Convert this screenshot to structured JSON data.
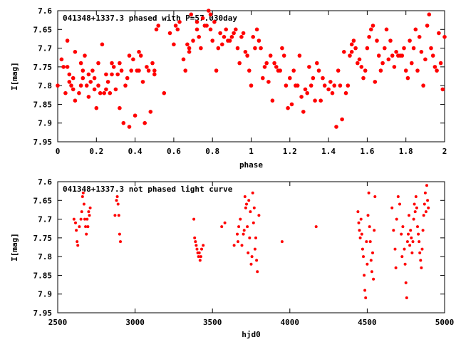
{
  "chart_data": [
    {
      "type": "scatter",
      "title": "041348+1337.3 phased with P=57.030day",
      "xlabel": "phase",
      "ylabel": "I[mag]",
      "xlim": [
        0,
        2
      ],
      "ylim": [
        7.95,
        7.6
      ],
      "y_inverted": true,
      "xticks": [
        0,
        0.2,
        0.4,
        0.6,
        0.8,
        1,
        1.2,
        1.4,
        1.6,
        1.8,
        2
      ],
      "xtick_labels": [
        "0",
        "0.2",
        "0.4",
        "0.6",
        "0.8",
        "1",
        "1.2",
        "1.4",
        "1.6",
        "1.8",
        "2"
      ],
      "yticks": [
        7.6,
        7.65,
        7.7,
        7.75,
        7.8,
        7.85,
        7.9,
        7.95
      ],
      "ytick_labels": [
        "7.6",
        "7.65",
        "7.7",
        "7.75",
        "7.8",
        "7.85",
        "7.9",
        "7.95"
      ],
      "grid": false,
      "marker_color": "#ff0000",
      "points": [
        [
          0.0,
          7.8
        ],
        [
          0.02,
          7.73
        ],
        [
          0.03,
          7.75
        ],
        [
          0.04,
          7.82
        ],
        [
          0.05,
          7.68
        ],
        [
          0.05,
          7.75
        ],
        [
          0.06,
          7.77
        ],
        [
          0.06,
          7.79
        ],
        [
          0.07,
          7.8
        ],
        [
          0.08,
          7.78
        ],
        [
          0.08,
          7.81
        ],
        [
          0.09,
          7.71
        ],
        [
          0.09,
          7.84
        ],
        [
          0.11,
          7.82
        ],
        [
          0.12,
          7.74
        ],
        [
          0.12,
          7.8
        ],
        [
          0.13,
          7.76
        ],
        [
          0.13,
          7.78
        ],
        [
          0.14,
          7.72
        ],
        [
          0.15,
          7.8
        ],
        [
          0.16,
          7.83
        ],
        [
          0.16,
          7.77
        ],
        [
          0.17,
          7.79
        ],
        [
          0.18,
          7.76
        ],
        [
          0.19,
          7.78
        ],
        [
          0.19,
          7.81
        ],
        [
          0.2,
          7.86
        ],
        [
          0.21,
          7.74
        ],
        [
          0.21,
          7.8
        ],
        [
          0.22,
          7.82
        ],
        [
          0.23,
          7.69
        ],
        [
          0.24,
          7.82
        ],
        [
          0.25,
          7.81
        ],
        [
          0.25,
          7.77
        ],
        [
          0.26,
          7.79
        ],
        [
          0.27,
          7.82
        ],
        [
          0.28,
          7.74
        ],
        [
          0.28,
          7.77
        ],
        [
          0.29,
          7.75
        ],
        [
          0.3,
          7.81
        ],
        [
          0.31,
          7.77
        ],
        [
          0.32,
          7.86
        ],
        [
          0.32,
          7.74
        ],
        [
          0.33,
          7.76
        ],
        [
          0.34,
          7.9
        ],
        [
          0.35,
          7.8
        ],
        [
          0.36,
          7.78
        ],
        [
          0.37,
          7.91
        ],
        [
          0.37,
          7.72
        ],
        [
          0.38,
          7.76
        ],
        [
          0.39,
          7.73
        ],
        [
          0.4,
          7.88
        ],
        [
          0.41,
          7.76
        ],
        [
          0.42,
          7.76
        ],
        [
          0.42,
          7.71
        ],
        [
          0.43,
          7.72
        ],
        [
          0.44,
          7.79
        ],
        [
          0.45,
          7.9
        ],
        [
          0.46,
          7.75
        ],
        [
          0.47,
          7.76
        ],
        [
          0.48,
          7.87
        ],
        [
          0.49,
          7.74
        ],
        [
          0.5,
          7.77
        ],
        [
          0.5,
          7.76
        ],
        [
          0.51,
          7.65
        ],
        [
          0.52,
          7.64
        ],
        [
          0.55,
          7.82
        ],
        [
          0.58,
          7.66
        ],
        [
          0.6,
          7.69
        ],
        [
          0.61,
          7.64
        ],
        [
          0.62,
          7.65
        ],
        [
          0.63,
          7.63
        ],
        [
          0.65,
          7.73
        ],
        [
          0.66,
          7.76
        ],
        [
          0.67,
          7.69
        ],
        [
          0.68,
          7.7
        ],
        [
          0.68,
          7.71
        ],
        [
          0.69,
          7.61
        ],
        [
          0.7,
          7.68
        ],
        [
          0.72,
          7.65
        ],
        [
          0.72,
          7.63
        ],
        [
          0.73,
          7.67
        ],
        [
          0.74,
          7.7
        ],
        [
          0.75,
          7.62
        ],
        [
          0.76,
          7.64
        ],
        [
          0.77,
          7.64
        ],
        [
          0.78,
          7.6
        ],
        [
          0.79,
          7.61
        ],
        [
          0.79,
          7.65
        ],
        [
          0.8,
          7.68
        ],
        [
          0.81,
          7.63
        ],
        [
          0.82,
          7.76
        ],
        [
          0.83,
          7.7
        ],
        [
          0.84,
          7.66
        ],
        [
          0.85,
          7.69
        ],
        [
          0.86,
          7.67
        ],
        [
          0.87,
          7.65
        ],
        [
          0.88,
          7.68
        ],
        [
          0.89,
          7.68
        ],
        [
          0.9,
          7.67
        ],
        [
          0.91,
          7.66
        ],
        [
          0.92,
          7.65
        ],
        [
          0.93,
          7.7
        ],
        [
          0.94,
          7.74
        ],
        [
          0.95,
          7.67
        ],
        [
          0.96,
          7.66
        ],
        [
          0.97,
          7.71
        ],
        [
          0.98,
          7.72
        ],
        [
          0.99,
          7.76
        ],
        [
          1.0,
          7.8
        ],
        [
          1.01,
          7.67
        ],
        [
          1.02,
          7.7
        ],
        [
          1.03,
          7.65
        ],
        [
          1.04,
          7.68
        ],
        [
          1.05,
          7.7
        ],
        [
          1.06,
          7.78
        ],
        [
          1.07,
          7.75
        ],
        [
          1.08,
          7.74
        ],
        [
          1.09,
          7.79
        ],
        [
          1.1,
          7.72
        ],
        [
          1.11,
          7.84
        ],
        [
          1.12,
          7.74
        ],
        [
          1.13,
          7.75
        ],
        [
          1.14,
          7.76
        ],
        [
          1.15,
          7.76
        ],
        [
          1.16,
          7.7
        ],
        [
          1.17,
          7.72
        ],
        [
          1.18,
          7.8
        ],
        [
          1.19,
          7.86
        ],
        [
          1.2,
          7.78
        ],
        [
          1.21,
          7.85
        ],
        [
          1.22,
          7.76
        ],
        [
          1.23,
          7.8
        ],
        [
          1.24,
          7.8
        ],
        [
          1.25,
          7.72
        ],
        [
          1.26,
          7.83
        ],
        [
          1.27,
          7.87
        ],
        [
          1.28,
          7.81
        ],
        [
          1.29,
          7.82
        ],
        [
          1.3,
          7.75
        ],
        [
          1.31,
          7.8
        ],
        [
          1.32,
          7.78
        ],
        [
          1.33,
          7.84
        ],
        [
          1.34,
          7.74
        ],
        [
          1.35,
          7.76
        ],
        [
          1.36,
          7.84
        ],
        [
          1.37,
          7.78
        ],
        [
          1.38,
          7.8
        ],
        [
          1.4,
          7.81
        ],
        [
          1.41,
          7.79
        ],
        [
          1.42,
          7.82
        ],
        [
          1.43,
          7.8
        ],
        [
          1.44,
          7.91
        ],
        [
          1.45,
          7.76
        ],
        [
          1.46,
          7.8
        ],
        [
          1.47,
          7.89
        ],
        [
          1.48,
          7.71
        ],
        [
          1.49,
          7.82
        ],
        [
          1.5,
          7.8
        ],
        [
          1.51,
          7.72
        ],
        [
          1.52,
          7.69
        ],
        [
          1.52,
          7.71
        ],
        [
          1.53,
          7.68
        ],
        [
          1.54,
          7.7
        ],
        [
          1.55,
          7.74
        ],
        [
          1.56,
          7.73
        ],
        [
          1.57,
          7.75
        ],
        [
          1.58,
          7.78
        ],
        [
          1.59,
          7.76
        ],
        [
          1.6,
          7.7
        ],
        [
          1.61,
          7.67
        ],
        [
          1.62,
          7.65
        ],
        [
          1.63,
          7.64
        ],
        [
          1.64,
          7.79
        ],
        [
          1.65,
          7.68
        ],
        [
          1.66,
          7.72
        ],
        [
          1.67,
          7.76
        ],
        [
          1.68,
          7.74
        ],
        [
          1.69,
          7.7
        ],
        [
          1.7,
          7.65
        ],
        [
          1.71,
          7.73
        ],
        [
          1.72,
          7.68
        ],
        [
          1.73,
          7.72
        ],
        [
          1.74,
          7.75
        ],
        [
          1.75,
          7.71
        ],
        [
          1.76,
          7.72
        ],
        [
          1.77,
          7.72
        ],
        [
          1.78,
          7.72
        ],
        [
          1.79,
          7.7
        ],
        [
          1.8,
          7.76
        ],
        [
          1.81,
          7.78
        ],
        [
          1.82,
          7.68
        ],
        [
          1.83,
          7.74
        ],
        [
          1.84,
          7.7
        ],
        [
          1.85,
          7.65
        ],
        [
          1.86,
          7.76
        ],
        [
          1.87,
          7.67
        ],
        [
          1.88,
          7.71
        ],
        [
          1.89,
          7.8
        ],
        [
          1.9,
          7.73
        ],
        [
          1.91,
          7.64
        ],
        [
          1.92,
          7.61
        ],
        [
          1.93,
          7.7
        ],
        [
          1.94,
          7.72
        ],
        [
          1.95,
          7.75
        ],
        [
          1.96,
          7.76
        ],
        [
          1.97,
          7.66
        ],
        [
          1.98,
          7.74
        ],
        [
          1.99,
          7.81
        ],
        [
          2.0,
          7.67
        ]
      ]
    },
    {
      "type": "scatter",
      "title": "041348+1337.3 not phased light curve",
      "xlabel": "hjd0",
      "ylabel": "I[mag]",
      "xlim": [
        2500,
        5000
      ],
      "ylim": [
        7.95,
        7.6
      ],
      "y_inverted": true,
      "xticks": [
        2500,
        3000,
        3500,
        4000,
        4500,
        5000
      ],
      "xtick_labels": [
        "2500",
        "3000",
        "3500",
        "4000",
        "4500",
        "5000"
      ],
      "yticks": [
        7.6,
        7.65,
        7.7,
        7.75,
        7.8,
        7.85,
        7.9,
        7.95
      ],
      "ytick_labels": [
        "7.6",
        "7.65",
        "7.7",
        "7.75",
        "7.8",
        "7.85",
        "7.9",
        "7.95"
      ],
      "grid": false,
      "marker_color": "#ff0000",
      "points": [
        [
          2605,
          7.7
        ],
        [
          2615,
          7.71
        ],
        [
          2620,
          7.73
        ],
        [
          2625,
          7.76
        ],
        [
          2630,
          7.77
        ],
        [
          2640,
          7.72
        ],
        [
          2650,
          7.7
        ],
        [
          2655,
          7.68
        ],
        [
          2660,
          7.64
        ],
        [
          2665,
          7.63
        ],
        [
          2670,
          7.66
        ],
        [
          2675,
          7.7
        ],
        [
          2680,
          7.72
        ],
        [
          2685,
          7.74
        ],
        [
          2690,
          7.7
        ],
        [
          2695,
          7.72
        ],
        [
          2700,
          7.68
        ],
        [
          2705,
          7.69
        ],
        [
          2710,
          7.67
        ],
        [
          2870,
          7.69
        ],
        [
          2880,
          7.65
        ],
        [
          2885,
          7.64
        ],
        [
          2890,
          7.66
        ],
        [
          2895,
          7.69
        ],
        [
          2900,
          7.74
        ],
        [
          2905,
          7.76
        ],
        [
          3380,
          7.7
        ],
        [
          3385,
          7.75
        ],
        [
          3390,
          7.76
        ],
        [
          3395,
          7.77
        ],
        [
          3400,
          7.78
        ],
        [
          3405,
          7.79
        ],
        [
          3410,
          7.8
        ],
        [
          3415,
          7.79
        ],
        [
          3420,
          7.81
        ],
        [
          3425,
          7.8
        ],
        [
          3430,
          7.78
        ],
        [
          3440,
          7.77
        ],
        [
          3560,
          7.72
        ],
        [
          3580,
          7.71
        ],
        [
          3640,
          7.77
        ],
        [
          3660,
          7.74
        ],
        [
          3665,
          7.76
        ],
        [
          3670,
          7.72
        ],
        [
          3680,
          7.7
        ],
        [
          3690,
          7.77
        ],
        [
          3700,
          7.74
        ],
        [
          3705,
          7.73
        ],
        [
          3710,
          7.64
        ],
        [
          3715,
          7.67
        ],
        [
          3720,
          7.66
        ],
        [
          3725,
          7.72
        ],
        [
          3730,
          7.79
        ],
        [
          3735,
          7.65
        ],
        [
          3740,
          7.75
        ],
        [
          3745,
          7.68
        ],
        [
          3750,
          7.82
        ],
        [
          3755,
          7.8
        ],
        [
          3760,
          7.63
        ],
        [
          3765,
          7.71
        ],
        [
          3770,
          7.67
        ],
        [
          3775,
          7.78
        ],
        [
          3780,
          7.75
        ],
        [
          3785,
          7.81
        ],
        [
          3790,
          7.84
        ],
        [
          3800,
          7.69
        ],
        [
          3950,
          7.76
        ],
        [
          4170,
          7.72
        ],
        [
          4440,
          7.68
        ],
        [
          4445,
          7.71
        ],
        [
          4450,
          7.73
        ],
        [
          4455,
          7.75
        ],
        [
          4460,
          7.7
        ],
        [
          4465,
          7.74
        ],
        [
          4470,
          7.78
        ],
        [
          4475,
          7.8
        ],
        [
          4480,
          7.85
        ],
        [
          4485,
          7.89
        ],
        [
          4490,
          7.91
        ],
        [
          4495,
          7.76
        ],
        [
          4500,
          7.82
        ],
        [
          4505,
          7.69
        ],
        [
          4510,
          7.63
        ],
        [
          4515,
          7.72
        ],
        [
          4520,
          7.76
        ],
        [
          4525,
          7.81
        ],
        [
          4530,
          7.84
        ],
        [
          4535,
          7.79
        ],
        [
          4540,
          7.86
        ],
        [
          4545,
          7.73
        ],
        [
          4550,
          7.64
        ],
        [
          4660,
          7.67
        ],
        [
          4670,
          7.73
        ],
        [
          4680,
          7.78
        ],
        [
          4685,
          7.83
        ],
        [
          4690,
          7.7
        ],
        [
          4700,
          7.64
        ],
        [
          4710,
          7.66
        ],
        [
          4720,
          7.74
        ],
        [
          4725,
          7.8
        ],
        [
          4730,
          7.72
        ],
        [
          4740,
          7.78
        ],
        [
          4745,
          7.82
        ],
        [
          4750,
          7.87
        ],
        [
          4755,
          7.91
        ],
        [
          4760,
          7.76
        ],
        [
          4765,
          7.74
        ],
        [
          4770,
          7.69
        ],
        [
          4775,
          7.77
        ],
        [
          4780,
          7.73
        ],
        [
          4785,
          7.75
        ],
        [
          4790,
          7.79
        ],
        [
          4795,
          7.76
        ],
        [
          4800,
          7.7
        ],
        [
          4805,
          7.66
        ],
        [
          4810,
          7.68
        ],
        [
          4815,
          7.64
        ],
        [
          4820,
          7.67
        ],
        [
          4825,
          7.72
        ],
        [
          4830,
          7.74
        ],
        [
          4835,
          7.76
        ],
        [
          4840,
          7.79
        ],
        [
          4845,
          7.81
        ],
        [
          4850,
          7.83
        ],
        [
          4855,
          7.78
        ],
        [
          4860,
          7.73
        ],
        [
          4865,
          7.69
        ],
        [
          4870,
          7.66
        ],
        [
          4875,
          7.63
        ],
        [
          4880,
          7.68
        ],
        [
          4885,
          7.61
        ],
        [
          4890,
          7.65
        ],
        [
          4895,
          7.67
        ]
      ]
    }
  ]
}
